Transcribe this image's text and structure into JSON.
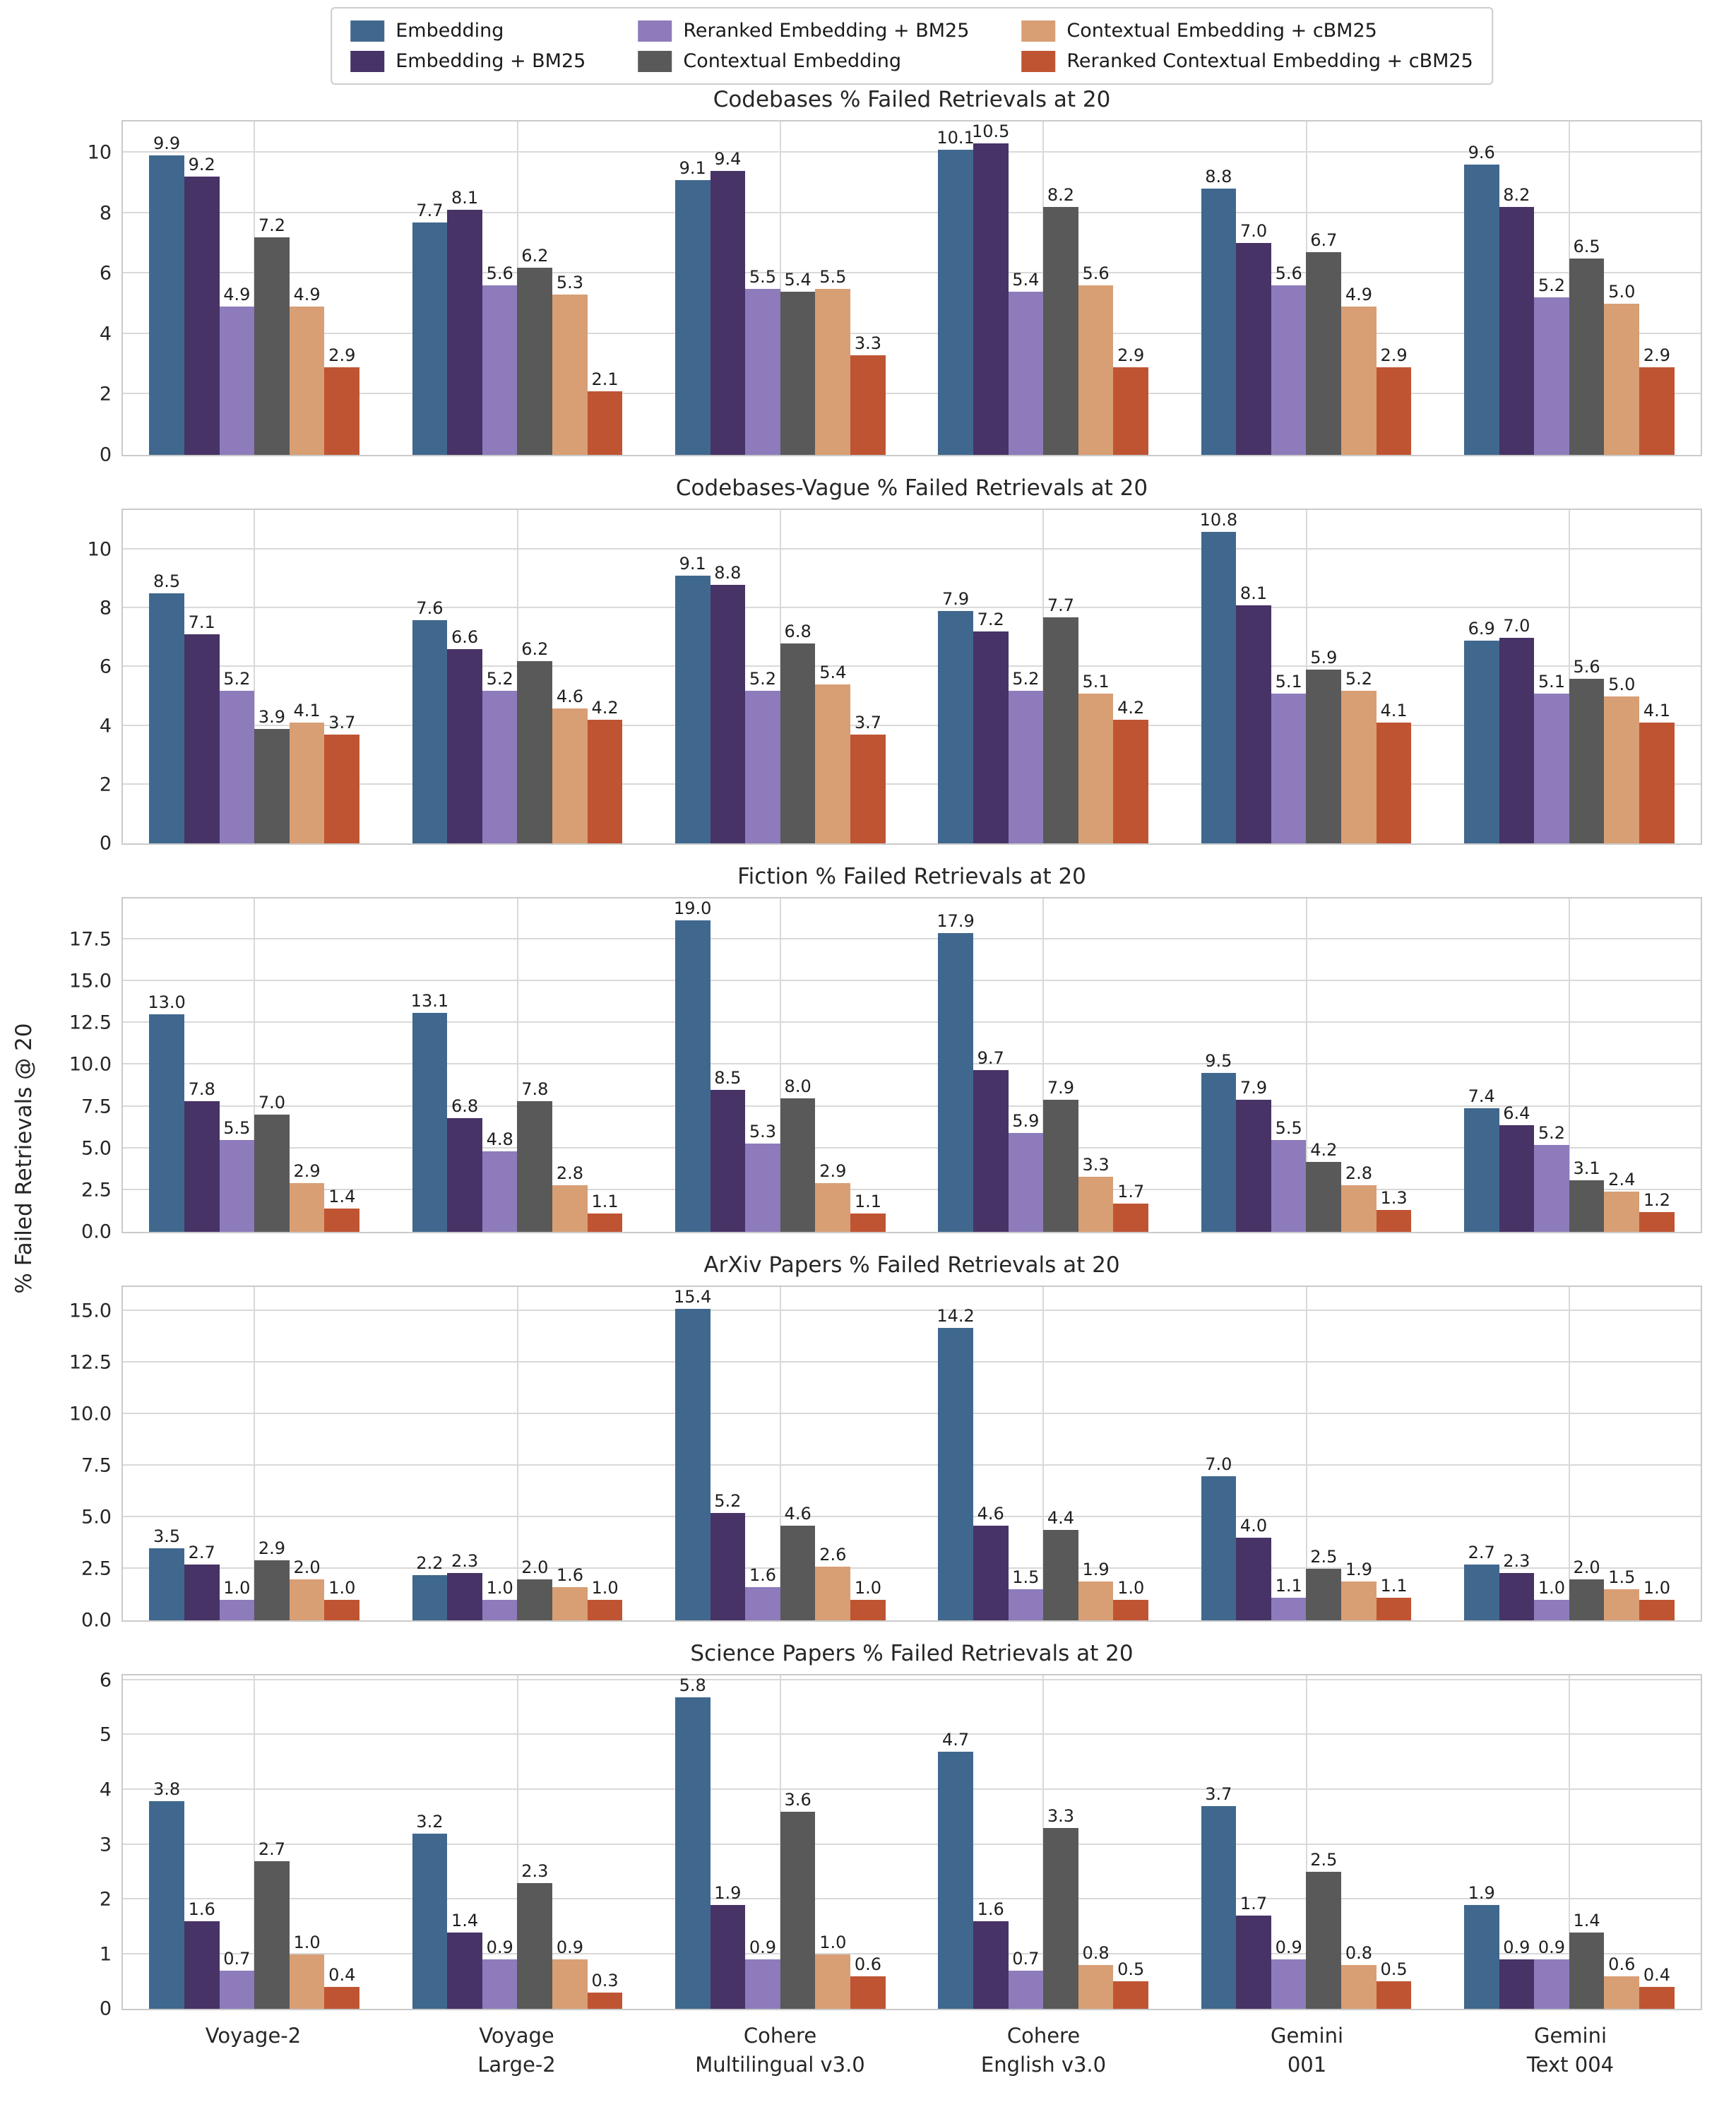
{
  "ylabel": "% Failed Retrievals @ 20",
  "legend": {
    "entries": [
      {
        "label": "Embedding",
        "color": "#40688e"
      },
      {
        "label": "Embedding + BM25",
        "color": "#473366"
      },
      {
        "label": "Reranked Embedding + BM25",
        "color": "#8d7bbb"
      },
      {
        "label": "Contextual Embedding",
        "color": "#595959"
      },
      {
        "label": "Contextual Embedding + cBM25",
        "color": "#d89e74"
      },
      {
        "label": "Reranked Contextual Embedding + cBM25",
        "color": "#bf5433"
      }
    ]
  },
  "categories": [
    "Voyage-2",
    "Voyage Large-2",
    "Cohere Multilingual v3.0",
    "Cohere English v3.0",
    "Gemini 001",
    "Gemini Text 004"
  ],
  "category_label_lines": [
    [
      "Voyage-2"
    ],
    [
      "Voyage",
      "Large-2"
    ],
    [
      "Cohere",
      "Multilingual v3.0"
    ],
    [
      "Cohere",
      "English v3.0"
    ],
    [
      "Gemini",
      "001"
    ],
    [
      "Gemini",
      "Text 004"
    ]
  ],
  "chart_data": [
    {
      "type": "bar",
      "title": "Codebases % Failed Retrievals at 20",
      "xlabel": "",
      "ylabel": "% Failed Retrievals @ 20",
      "ylim": [
        0,
        11.03
      ],
      "yticks": [
        "0",
        "2",
        "4",
        "6",
        "8",
        "10"
      ],
      "ytick_values": [
        0,
        2,
        4,
        6,
        8,
        10
      ],
      "grid": true,
      "legend_position": "top",
      "series": [
        {
          "name": "Embedding",
          "values": [
            9.9,
            7.7,
            9.1,
            10.1,
            8.8,
            9.6
          ]
        },
        {
          "name": "Embedding + BM25",
          "values": [
            9.2,
            8.1,
            9.4,
            10.5,
            7.0,
            8.2
          ]
        },
        {
          "name": "Reranked Embedding + BM25",
          "values": [
            4.9,
            5.6,
            5.5,
            5.4,
            5.6,
            5.2
          ]
        },
        {
          "name": "Contextual Embedding",
          "values": [
            7.2,
            6.2,
            5.4,
            8.2,
            6.7,
            6.5
          ]
        },
        {
          "name": "Contextual Embedding + cBM25",
          "values": [
            4.9,
            5.3,
            5.5,
            5.6,
            4.9,
            5.0
          ]
        },
        {
          "name": "Reranked Contextual Embedding + cBM25",
          "values": [
            2.9,
            2.1,
            3.3,
            2.9,
            2.9,
            2.9
          ]
        }
      ]
    },
    {
      "type": "bar",
      "title": "Codebases-Vague % Failed Retrievals at 20",
      "xlabel": "",
      "ylabel": "% Failed Retrievals @ 20",
      "ylim": [
        0,
        11.34
      ],
      "yticks": [
        "0",
        "2",
        "4",
        "6",
        "8",
        "10"
      ],
      "ytick_values": [
        0,
        2,
        4,
        6,
        8,
        10
      ],
      "grid": true,
      "series": [
        {
          "name": "Embedding",
          "values": [
            8.5,
            7.6,
            9.1,
            7.9,
            10.8,
            6.9
          ]
        },
        {
          "name": "Embedding + BM25",
          "values": [
            7.1,
            6.6,
            8.8,
            7.2,
            8.1,
            7.0
          ]
        },
        {
          "name": "Reranked Embedding + BM25",
          "values": [
            5.2,
            5.2,
            5.2,
            5.2,
            5.1,
            5.1
          ]
        },
        {
          "name": "Contextual Embedding",
          "values": [
            3.9,
            6.2,
            6.8,
            7.7,
            5.9,
            5.6
          ]
        },
        {
          "name": "Contextual Embedding + cBM25",
          "values": [
            4.1,
            4.6,
            5.4,
            5.1,
            5.2,
            5.0
          ]
        },
        {
          "name": "Reranked Contextual Embedding + cBM25",
          "values": [
            3.7,
            4.2,
            3.7,
            4.2,
            4.1,
            4.1
          ]
        }
      ]
    },
    {
      "type": "bar",
      "title": "Fiction % Failed Retrievals at 20",
      "xlabel": "",
      "ylabel": "% Failed Retrievals @ 20",
      "ylim": [
        0,
        19.95
      ],
      "yticks": [
        "0.0",
        "2.5",
        "5.0",
        "7.5",
        "10.0",
        "12.5",
        "15.0",
        "17.5"
      ],
      "ytick_values": [
        0,
        2.5,
        5,
        7.5,
        10,
        12.5,
        15,
        17.5
      ],
      "grid": true,
      "series": [
        {
          "name": "Embedding",
          "values": [
            13.0,
            13.1,
            19.0,
            17.9,
            9.5,
            7.4
          ]
        },
        {
          "name": "Embedding + BM25",
          "values": [
            7.8,
            6.8,
            8.5,
            9.7,
            7.9,
            6.4
          ]
        },
        {
          "name": "Reranked Embedding + BM25",
          "values": [
            5.5,
            4.8,
            5.3,
            5.9,
            5.5,
            5.2
          ]
        },
        {
          "name": "Contextual Embedding",
          "values": [
            7.0,
            7.8,
            8.0,
            7.9,
            4.2,
            3.1
          ]
        },
        {
          "name": "Contextual Embedding + cBM25",
          "values": [
            2.9,
            2.8,
            2.9,
            3.3,
            2.8,
            2.4
          ]
        },
        {
          "name": "Reranked Contextual Embedding + cBM25",
          "values": [
            1.4,
            1.1,
            1.1,
            1.7,
            1.3,
            1.2
          ]
        }
      ]
    },
    {
      "type": "bar",
      "title": "ArXiv Papers % Failed Retrievals at 20",
      "xlabel": "",
      "ylabel": "% Failed Retrievals @ 20",
      "ylim": [
        0,
        16.17
      ],
      "yticks": [
        "0.0",
        "2.5",
        "5.0",
        "7.5",
        "10.0",
        "12.5",
        "15.0"
      ],
      "ytick_values": [
        0,
        2.5,
        5,
        7.5,
        10,
        12.5,
        15
      ],
      "grid": true,
      "series": [
        {
          "name": "Embedding",
          "values": [
            3.5,
            2.2,
            15.4,
            14.2,
            7.0,
            2.7
          ]
        },
        {
          "name": "Embedding + BM25",
          "values": [
            2.7,
            2.3,
            5.2,
            4.6,
            4.0,
            2.3
          ]
        },
        {
          "name": "Reranked Embedding + BM25",
          "values": [
            1.0,
            1.0,
            1.6,
            1.5,
            1.1,
            1.0
          ]
        },
        {
          "name": "Contextual Embedding",
          "values": [
            2.9,
            2.0,
            4.6,
            4.4,
            2.5,
            2.0
          ]
        },
        {
          "name": "Contextual Embedding + cBM25",
          "values": [
            2.0,
            1.6,
            2.6,
            1.9,
            1.9,
            1.5
          ]
        },
        {
          "name": "Reranked Contextual Embedding + cBM25",
          "values": [
            1.0,
            1.0,
            1.0,
            1.0,
            1.1,
            1.0
          ]
        }
      ]
    },
    {
      "type": "bar",
      "title": "Science Papers % Failed Retrievals at 20",
      "xlabel": "",
      "ylabel": "% Failed Retrievals @ 20",
      "ylim": [
        0,
        6.09
      ],
      "yticks": [
        "0",
        "1",
        "2",
        "3",
        "4",
        "5",
        "6"
      ],
      "ytick_values": [
        0,
        1,
        2,
        3,
        4,
        5,
        6
      ],
      "grid": true,
      "series": [
        {
          "name": "Embedding",
          "values": [
            3.8,
            3.2,
            5.8,
            4.7,
            3.7,
            1.9
          ]
        },
        {
          "name": "Embedding + BM25",
          "values": [
            1.6,
            1.4,
            1.9,
            1.6,
            1.7,
            0.9
          ]
        },
        {
          "name": "Reranked Embedding + BM25",
          "values": [
            0.7,
            0.9,
            0.9,
            0.7,
            0.9,
            0.9
          ]
        },
        {
          "name": "Contextual Embedding",
          "values": [
            2.7,
            2.3,
            3.6,
            3.3,
            2.5,
            1.4
          ]
        },
        {
          "name": "Contextual Embedding + cBM25",
          "values": [
            1.0,
            0.9,
            1.0,
            0.8,
            0.8,
            0.6
          ]
        },
        {
          "name": "Reranked Contextual Embedding + cBM25",
          "values": [
            0.4,
            0.3,
            0.6,
            0.5,
            0.5,
            0.4
          ]
        }
      ]
    }
  ]
}
